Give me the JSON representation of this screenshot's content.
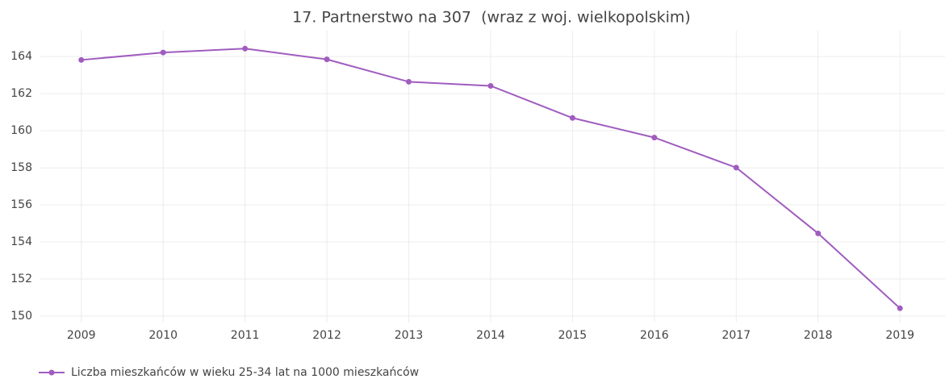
{
  "chart_data": {
    "type": "line",
    "title": "17. Partnerstwo na 307  (wraz z woj. wielkopolskim)",
    "x": [
      2009,
      2010,
      2011,
      2012,
      2013,
      2014,
      2015,
      2016,
      2017,
      2018,
      2019
    ],
    "series": [
      {
        "name": "Liczba mieszkańców w wieku 25-34 lat na 1000 mieszkańców",
        "color": "#a05cbf",
        "values": [
          163.82,
          164.22,
          164.43,
          163.85,
          162.64,
          162.42,
          160.69,
          159.63,
          158.01,
          154.46,
          150.42
        ]
      }
    ],
    "xlim": [
      2008.5,
      2019.55
    ],
    "xticks": [
      2009,
      2010,
      2011,
      2012,
      2013,
      2014,
      2015,
      2016,
      2017,
      2018,
      2019
    ],
    "ylim": [
      149.65,
      165.4
    ],
    "yticks": [
      150,
      152,
      154,
      156,
      158,
      160,
      162,
      164
    ],
    "grid": true,
    "legend": "bottom-left"
  }
}
